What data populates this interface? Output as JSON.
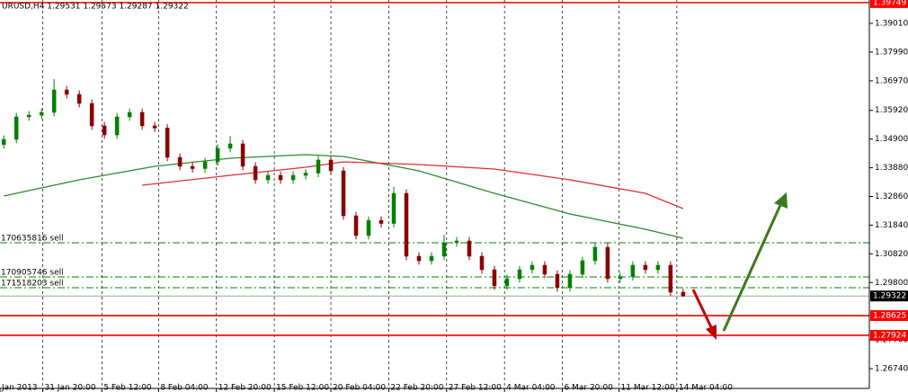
{
  "chart_data": {
    "type": "candlestick",
    "title": "URUSD,H4 1.29531 1.29573 1.29287 1.29322",
    "up_color": "#008000",
    "down_color": "#8b0000",
    "candles": {
      "open": [
        1.347,
        1.34888,
        1.35687,
        1.35751,
        1.35847,
        1.36646,
        1.36486,
        1.36166,
        1.35368,
        1.35048,
        1.35687,
        1.35847,
        1.35368,
        1.3529,
        1.34249,
        1.3393,
        1.3385,
        1.3409,
        1.34569,
        1.34729,
        1.3393,
        1.33451,
        1.3361,
        1.33451,
        1.3361,
        1.3369,
        1.34154,
        1.3377,
        1.32173,
        1.3147,
        1.3201,
        1.319,
        1.32971,
        1.30735,
        1.30575,
        1.30735,
        1.31214,
        1.31278,
        1.30735,
        1.30256,
        1.29681,
        1.29936,
        1.30256,
        1.30415,
        1.30096,
        1.29617,
        1.30096,
        1.30575,
        1.31054,
        1.29936,
        1.3001,
        1.30415,
        1.30256,
        1.30415,
        1.29457
      ],
      "high": [
        1.35028,
        1.35827,
        1.35891,
        1.35987,
        1.3703,
        1.36786,
        1.36626,
        1.36306,
        1.35508,
        1.35827,
        1.35987,
        1.35987,
        1.35508,
        1.3543,
        1.34389,
        1.3407,
        1.3423,
        1.34709,
        1.35,
        1.34869,
        1.3407,
        1.3375,
        1.3375,
        1.3375,
        1.3383,
        1.34294,
        1.34294,
        1.3391,
        1.32313,
        1.3215,
        1.3215,
        1.332,
        1.33111,
        1.30875,
        1.30875,
        1.315,
        1.31418,
        1.31418,
        1.30875,
        1.30396,
        1.30076,
        1.30396,
        1.30555,
        1.30555,
        1.30236,
        1.30236,
        1.30715,
        1.31194,
        1.31194,
        1.3015,
        1.30555,
        1.30555,
        1.30555,
        1.30555,
        1.29573
      ],
      "low": [
        1.3456,
        1.34748,
        1.35547,
        1.35611,
        1.35707,
        1.36346,
        1.36026,
        1.35228,
        1.34908,
        1.34908,
        1.35547,
        1.35228,
        1.3515,
        1.34109,
        1.3379,
        1.3371,
        1.3371,
        1.3395,
        1.34429,
        1.3379,
        1.33311,
        1.33311,
        1.33311,
        1.33311,
        1.3347,
        1.3355,
        1.3363,
        1.32033,
        1.3133,
        1.3133,
        1.3176,
        1.3176,
        1.30595,
        1.30435,
        1.30435,
        1.30595,
        1.31074,
        1.30595,
        1.30116,
        1.29541,
        1.29541,
        1.29796,
        1.30116,
        1.29956,
        1.29477,
        1.29477,
        1.29956,
        1.30435,
        1.29796,
        1.29796,
        1.2987,
        1.30116,
        1.30116,
        1.29317,
        1.29287
      ],
      "close": [
        1.34888,
        1.35687,
        1.35751,
        1.35847,
        1.36646,
        1.36486,
        1.36166,
        1.35368,
        1.35048,
        1.35687,
        1.35847,
        1.35368,
        1.3529,
        1.34249,
        1.3393,
        1.3385,
        1.3409,
        1.34569,
        1.34729,
        1.3393,
        1.33451,
        1.3361,
        1.33451,
        1.3361,
        1.3369,
        1.34154,
        1.3377,
        1.32173,
        1.3147,
        1.3201,
        1.319,
        1.32971,
        1.30735,
        1.30575,
        1.30735,
        1.31214,
        1.31278,
        1.30735,
        1.30256,
        1.29681,
        1.29936,
        1.30256,
        1.30415,
        1.30096,
        1.29617,
        1.30096,
        1.30575,
        1.31054,
        1.29936,
        1.3001,
        1.30415,
        1.30256,
        1.30415,
        1.29457,
        1.29322
      ]
    },
    "lines": [
      {
        "color": "#2e8b2e",
        "x": [
          0,
          6,
          12,
          18,
          24,
          27,
          33,
          39,
          45,
          51,
          54
        ],
        "values": [
          1.32876,
          1.33451,
          1.3393,
          1.34217,
          1.34345,
          1.34281,
          1.3377,
          1.32971,
          1.32237,
          1.31693,
          1.31374
        ]
      },
      {
        "color": "#e03030",
        "x": [
          11,
          18,
          24,
          27,
          33,
          39,
          45,
          51,
          54
        ],
        "values": [
          1.33259,
          1.3361,
          1.33898,
          1.3409,
          1.33994,
          1.33834,
          1.33451,
          1.32971,
          1.32428
        ]
      }
    ],
    "levels": [
      {
        "value": 1.39749,
        "color": "#ff0000"
      },
      {
        "value": 1.28625,
        "color": "#ff0000"
      },
      {
        "value": 1.27924,
        "color": "#ff0000"
      },
      {
        "value": 1.29322,
        "color": "#000000"
      }
    ],
    "orders": [
      {
        "label": "170635816 sell",
        "value": 1.31214
      },
      {
        "label": "170905746 sell",
        "value": 1.3
      },
      {
        "label": "171518203 sell",
        "value": 1.29617
      }
    ],
    "xlim": [
      -0.3,
      68.8
    ],
    "ylim": [
      1.26038,
      1.39841
    ],
    "xticks": [
      {
        "value": -0.3,
        "label": "Jan 2013"
      },
      {
        "value": 3.1,
        "label": "31 Jan 20:00"
      },
      {
        "value": 7.8,
        "label": "5 Feb 12:00"
      },
      {
        "value": 12.3,
        "label": "8 Feb 04:00"
      },
      {
        "value": 16.9,
        "label": "12 Feb 20:00"
      },
      {
        "value": 21.5,
        "label": "15 Feb 12:00"
      },
      {
        "value": 26,
        "label": "20 Feb 04:00"
      },
      {
        "value": 30.6,
        "label": "22 Feb 20:00"
      },
      {
        "value": 35.2,
        "label": "27 Feb 12:00"
      },
      {
        "value": 39.8,
        "label": "4 Mar 04:00"
      },
      {
        "value": 44.4,
        "label": "6 Mar 20:00"
      },
      {
        "value": 48.9,
        "label": "11 Mar 12:00"
      },
      {
        "value": 53.5,
        "label": "14 Mar 04:00"
      }
    ],
    "yticks": [
      {
        "value": 1.3901,
        "label": "1.39010"
      },
      {
        "value": 1.3799,
        "label": "1.37990"
      },
      {
        "value": 1.3697,
        "label": "1.36970"
      },
      {
        "value": 1.3592,
        "label": "1.35920"
      },
      {
        "value": 1.349,
        "label": "1.34900"
      },
      {
        "value": 1.3388,
        "label": "1.33880"
      },
      {
        "value": 1.3286,
        "label": "1.32860"
      },
      {
        "value": 1.3184,
        "label": "1.31840"
      },
      {
        "value": 1.3082,
        "label": "1.30820"
      },
      {
        "value": 1.298,
        "label": "1.29800"
      },
      {
        "value": 1.2776,
        "label": "1.27760"
      },
      {
        "value": 1.2674,
        "label": "1.26740"
      }
    ],
    "grid": true
  }
}
